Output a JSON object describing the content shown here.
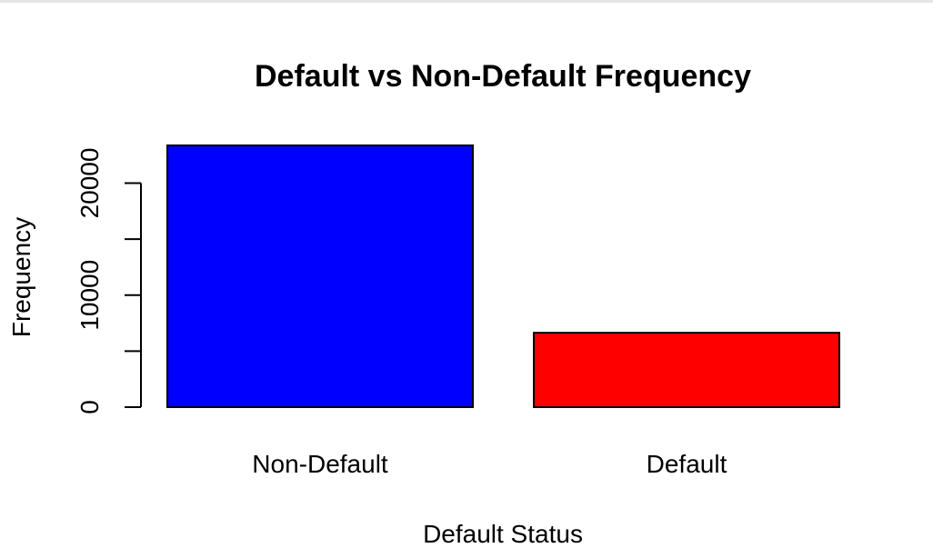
{
  "chart_data": {
    "type": "bar",
    "title": "Default vs Non-Default Frequency",
    "xlabel": "Default Status",
    "ylabel": "Frequency",
    "categories": [
      "Non-Default",
      "Default"
    ],
    "values": [
      23364,
      6636
    ],
    "colors": [
      "#0000ff",
      "#ff0000"
    ],
    "ylim": [
      0,
      23364
    ],
    "yticks": [
      0,
      5000,
      10000,
      15000,
      20000
    ],
    "ytick_labels": [
      "0",
      "",
      "10000",
      "",
      "20000"
    ],
    "grid": false,
    "legend": "none"
  }
}
